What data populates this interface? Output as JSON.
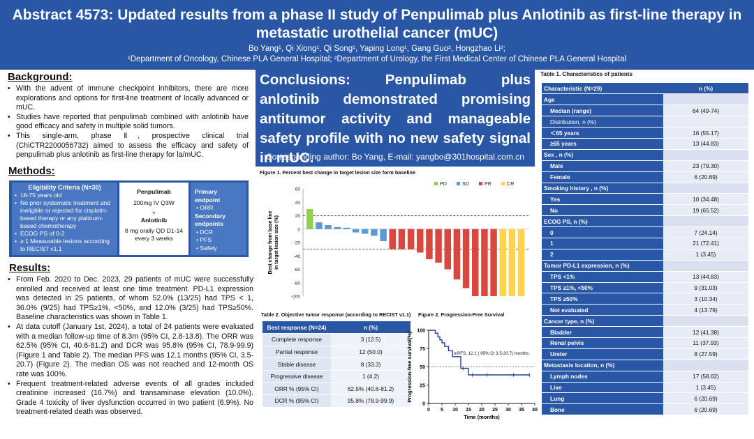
{
  "header": {
    "title": "Abstract 4573: Updated results from a phase II study of Penpulimab plus Anlotinib as first-line therapy in metastatic urothelial cancer (mUC)",
    "authors": "Bo Yang¹, Qi Xiong¹, Qi Song¹, Yaping Long¹, Gang Guo², Hongzhao Li²;",
    "affiliations": "¹Department of Oncology, Chinese PLA General Hospital; ²Department of Urology, the First Medical Center of Chinese PLA General Hospital"
  },
  "background": {
    "heading": "Background:",
    "bullets": [
      "With the advent of immune checkpoint inhibitors, there are more explorations and options for first-line treatment of locally advanced or mUC.",
      "Studies have reported that penpulimab combined with anlotinib have good efficacy and safety in multiple solid tumors.",
      "This single-arm, phase Ⅱ, prospective clinical trial (ChiCTR2200056732) aimed to assess the efficacy and safety of penpulimab plus anlotinib as first-line therapy for la/mUC."
    ]
  },
  "methods": {
    "heading": "Methods:",
    "eligibility_title": "Eligibility Criteria (N=30)",
    "eligibility": [
      "18-75 years old",
      "No prior systematic treatment and ineligible or rejected for cisplatin-based therapy or any platinum-based chemotherapy",
      "ECOG PS of 0-2",
      "≥ 1 Measurable lesions according to RECIST v1.1"
    ],
    "drug1": "Penpulimab",
    "drug1_dose": "200mg IV Q3W",
    "plus": "+",
    "drug2": "Anlotinib",
    "drug2_dose": "8 mg orally QD D1-14",
    "drug2_cycle": "every 3 weeks",
    "primary_label": "Primary endpoint",
    "primary": [
      "ORR"
    ],
    "secondary_label": "Secondary endpoints",
    "secondary": [
      "DCR",
      "PFS",
      "Safety"
    ]
  },
  "results": {
    "heading": "Results:",
    "bullets": [
      "From Feb. 2020 to Dec. 2023, 29 patients of mUC were successfully enrolled and received at least one time treatment. PD-L1 expression was detected in 25 patients, of whom 52.0% (13/25) had TPS < 1, 36.0% (9/25) had TPS≥1%, <50%, and 12.0% (3/25) had TPS≥50%. Baseline characteristics was shown in Table 1.",
      "At data cutoff (January 1st, 2024), a total of 24 patients were evaluated with a median follow-up time of 8.3m (95% CI, 2.8-13.8). The ORR was 62.5% (95% CI, 40.6-81.2) and DCR was 95.8% (95% CI, 78.9-99.9) (Figure 1 and Table 2). The median PFS was 12.1 months (95% CI, 3.5-20.7) (Figure 2). The median OS was not reached and 12-month OS rate was 100%.",
      "Frequent treatment-related adverse events of all grades included creatinine increased (16.7%) and transaminase elevation (10.0%). Grade 4 toxicity of liver dysfunction occurred in two patient (6.9%). No treatment-related death was observed."
    ]
  },
  "conclusion": {
    "text": "Conclusions: Penpulimab plus anlotinib demonstrated promising antitumor activity and manageable safety profile with no new safety signal in mUC.",
    "contact": "Corresponding author: Bo Yang, E-mail: yangbo@301hospital.com.cn"
  },
  "figure1_caption": "Figure 1. Percent best change in target lesion size form baseline",
  "table2": {
    "caption": "Table 2. Objective tumor response (according to RECIST v1.1)",
    "header": [
      "Best response (N=24)",
      "n (%)"
    ],
    "rows": [
      [
        "Complete response",
        "3 (12.5)"
      ],
      [
        "Partial response",
        "12 (50.0)"
      ],
      [
        "Stable disease",
        "8 (33.3)"
      ],
      [
        "Progressive disease",
        "1 (4.2)"
      ],
      [
        "ORR % (95% CI)",
        "62.5% (40.6-81.2)"
      ],
      [
        "DCR % (95% CI)",
        "95.8% (78.9-99.9)"
      ]
    ]
  },
  "figure2_caption": "Figure 2. Progression-Free Survival",
  "table1": {
    "caption": "Table 1. Characteristics of patients",
    "header": [
      "Characteristic (N=29)",
      "n (%)"
    ],
    "rows": [
      {
        "label": "Age",
        "value": "",
        "kind": "cat"
      },
      {
        "label": "Median (range)",
        "value": "64 (49-74)",
        "kind": "sub"
      },
      {
        "label": "Distribution, n (%)",
        "value": "",
        "kind": "sub2"
      },
      {
        "label": "＜65 years",
        "value": "16 (55.17)",
        "kind": "sub"
      },
      {
        "label": "≥65 years",
        "value": "13 (44.83)",
        "kind": "sub"
      },
      {
        "label": "Sex , n (%)",
        "value": "",
        "kind": "cat"
      },
      {
        "label": "Male",
        "value": "23 (79.30)",
        "kind": "sub"
      },
      {
        "label": "Female",
        "value": "6 (20.69)",
        "kind": "sub"
      },
      {
        "label": "Smoking history , n (%)",
        "value": "",
        "kind": "cat"
      },
      {
        "label": "Yes",
        "value": "10 (34.48)",
        "kind": "sub"
      },
      {
        "label": "No",
        "value": "19 (65.52)",
        "kind": "sub"
      },
      {
        "label": "ECOG PS, n (%)",
        "value": "",
        "kind": "cat"
      },
      {
        "label": "0",
        "value": "7 (24.14)",
        "kind": "sub"
      },
      {
        "label": "1",
        "value": "21 (72.41)",
        "kind": "sub"
      },
      {
        "label": "2",
        "value": "1 (3.45)",
        "kind": "sub"
      },
      {
        "label": "Tumor PD-L1 expression, n (%)",
        "value": "",
        "kind": "cat"
      },
      {
        "label": "TPS <1%",
        "value": "13 (44.83)",
        "kind": "sub"
      },
      {
        "label": "TPS ≥1%, <50%",
        "value": "9 (31.03)",
        "kind": "sub"
      },
      {
        "label": "TPS ≥50%",
        "value": "3 (10.34)",
        "kind": "sub"
      },
      {
        "label": "Not evaluated",
        "value": "4 (13.79)",
        "kind": "sub"
      },
      {
        "label": "Cancer type, n (%)",
        "value": "",
        "kind": "cat"
      },
      {
        "label": "Bladder",
        "value": "12 (41.38)",
        "kind": "sub"
      },
      {
        "label": "Renal pelvis",
        "value": "11 (37.93)",
        "kind": "sub"
      },
      {
        "label": "Ureter",
        "value": "8 (27.59)",
        "kind": "sub"
      },
      {
        "label": "Metastasis location, n (%)",
        "value": "",
        "kind": "cat"
      },
      {
        "label": "Lymph nodes",
        "value": "17 (58.62)",
        "kind": "sub"
      },
      {
        "label": "Live",
        "value": "1 (3.45)",
        "kind": "sub"
      },
      {
        "label": "Lung",
        "value": "6 (20.69)",
        "kind": "sub"
      },
      {
        "label": "Bone",
        "value": "6 (20.69)",
        "kind": "sub"
      }
    ]
  },
  "colors": {
    "accent": "#2a56a6",
    "PD": "#92d050",
    "SD": "#5b9bd5",
    "PR": "#d9473f",
    "CR": "#ffd34d"
  },
  "chart_data": [
    {
      "type": "bar",
      "title": "Figure 1. Percent best change in target lesion size form baseline",
      "ylabel": "Best change from base line in target lesion size (%)",
      "ylim": [
        -100,
        60
      ],
      "yticks": [
        60,
        40,
        20,
        0,
        -20,
        -40,
        -60,
        -80,
        -100
      ],
      "reference_lines": [
        20,
        -30
      ],
      "legend": [
        "PD",
        "SD",
        "PR",
        "CR"
      ],
      "legend_position": "top-right",
      "values": [
        30,
        10,
        6,
        3,
        2,
        -5,
        -7,
        -10,
        -18,
        -30,
        -30,
        -30,
        -35,
        -45,
        -50,
        -60,
        -75,
        -88,
        -100,
        -100,
        -100,
        -100,
        -100,
        -100
      ],
      "response": [
        "PD",
        "SD",
        "SD",
        "SD",
        "SD",
        "SD",
        "SD",
        "SD",
        "SD",
        "PR",
        "PR",
        "PR",
        "PR",
        "PR",
        "PR",
        "PR",
        "PR",
        "PR",
        "PR",
        "PR",
        "PR",
        "CR",
        "CR",
        "CR"
      ]
    },
    {
      "type": "line",
      "title": "Figure 2. Progression-Free Survival",
      "xlabel": "Time (months)",
      "ylabel": "Progression-free survival(%)",
      "xlim": [
        0,
        40
      ],
      "ylim": [
        0,
        100
      ],
      "xticks": [
        0,
        5,
        10,
        15,
        20,
        25,
        30,
        35,
        40
      ],
      "yticks": [
        0,
        25,
        50,
        75,
        100
      ],
      "reference_line": 50,
      "annotation": "mPFS, 12.1 ( 95% CI 3.5-20.7) months",
      "series": [
        {
          "x": [
            0,
            2.5,
            2.5,
            3.5,
            3.5,
            4.2,
            4.2,
            5,
            5,
            6,
            6,
            7.5,
            7.5,
            9,
            9,
            12.1,
            12.1,
            15,
            15,
            38
          ],
          "y": [
            100,
            100,
            96,
            96,
            91,
            91,
            87,
            87,
            83,
            83,
            78,
            78,
            72,
            72,
            64,
            64,
            48,
            48,
            39,
            39
          ]
        }
      ],
      "censored": [
        [
          13,
          48
        ],
        [
          16.5,
          39
        ],
        [
          22,
          39
        ],
        [
          32,
          39
        ],
        [
          38,
          39
        ]
      ]
    }
  ]
}
